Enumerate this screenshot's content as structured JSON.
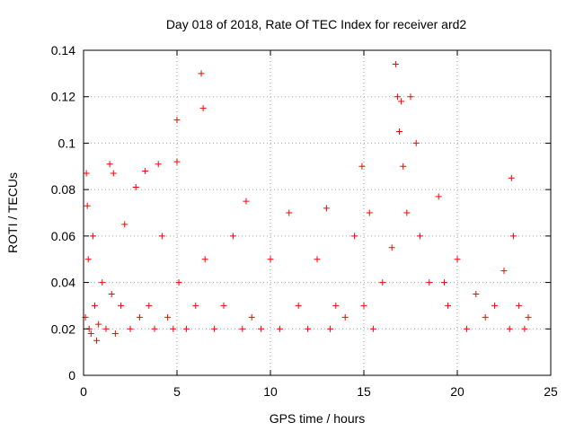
{
  "chart_data": {
    "type": "scatter",
    "title": "Day 018 of 2018, Rate Of TEC Index for receiver ard2",
    "xlabel": "GPS time / hours",
    "ylabel": "ROTI / TECUs",
    "xlim": [
      0,
      25
    ],
    "ylim": [
      0,
      0.14
    ],
    "xticks": [
      0,
      5,
      10,
      15,
      20,
      25
    ],
    "xtick_labels": [
      "0",
      "5",
      "10",
      "15",
      "20",
      "25"
    ],
    "yticks": [
      0,
      0.02,
      0.04,
      0.06,
      0.08,
      0.1,
      0.12,
      0.14
    ],
    "ytick_labels": [
      "0",
      "0.02",
      "0.04",
      "0.06",
      "0.08",
      "0.1",
      "0.12",
      "0.14"
    ],
    "grid": true,
    "marker": "plus",
    "color": "#ff0000",
    "series": [
      {
        "name": "ROTI",
        "x": [
          0.1,
          0.15,
          0.2,
          0.25,
          0.3,
          0.4,
          0.5,
          0.6,
          0.7,
          0.8,
          1.0,
          1.2,
          1.4,
          1.5,
          1.6,
          1.7,
          2.0,
          2.2,
          2.5,
          2.8,
          3.0,
          3.3,
          3.5,
          3.8,
          4.0,
          4.2,
          4.5,
          4.8,
          5.0,
          5.0,
          5.1,
          5.5,
          6.0,
          6.3,
          6.4,
          6.5,
          7.0,
          7.5,
          8.0,
          8.5,
          8.7,
          9.0,
          9.5,
          10.0,
          10.5,
          11.0,
          11.5,
          12.0,
          12.5,
          13.0,
          13.2,
          13.5,
          14.0,
          14.5,
          14.9,
          15.0,
          15.3,
          15.5,
          16.0,
          16.5,
          16.7,
          16.8,
          16.9,
          17.0,
          17.1,
          17.3,
          17.5,
          17.8,
          18.0,
          18.5,
          19.0,
          19.3,
          19.5,
          20.0,
          20.5,
          21.0,
          21.5,
          22.0,
          22.5,
          22.8,
          22.9,
          23.0,
          23.3,
          23.6,
          23.8
        ],
        "y": [
          0.025,
          0.087,
          0.073,
          0.05,
          0.02,
          0.018,
          0.06,
          0.03,
          0.015,
          0.022,
          0.04,
          0.02,
          0.091,
          0.035,
          0.087,
          0.018,
          0.03,
          0.065,
          0.02,
          0.081,
          0.025,
          0.088,
          0.03,
          0.02,
          0.091,
          0.06,
          0.025,
          0.02,
          0.11,
          0.092,
          0.04,
          0.02,
          0.03,
          0.13,
          0.115,
          0.05,
          0.02,
          0.03,
          0.06,
          0.02,
          0.075,
          0.025,
          0.02,
          0.05,
          0.02,
          0.07,
          0.03,
          0.02,
          0.05,
          0.072,
          0.02,
          0.03,
          0.025,
          0.06,
          0.09,
          0.03,
          0.07,
          0.02,
          0.04,
          0.055,
          0.134,
          0.12,
          0.105,
          0.118,
          0.09,
          0.07,
          0.12,
          0.1,
          0.06,
          0.04,
          0.077,
          0.04,
          0.03,
          0.05,
          0.02,
          0.035,
          0.025,
          0.03,
          0.045,
          0.02,
          0.085,
          0.06,
          0.03,
          0.02,
          0.025
        ]
      }
    ]
  }
}
